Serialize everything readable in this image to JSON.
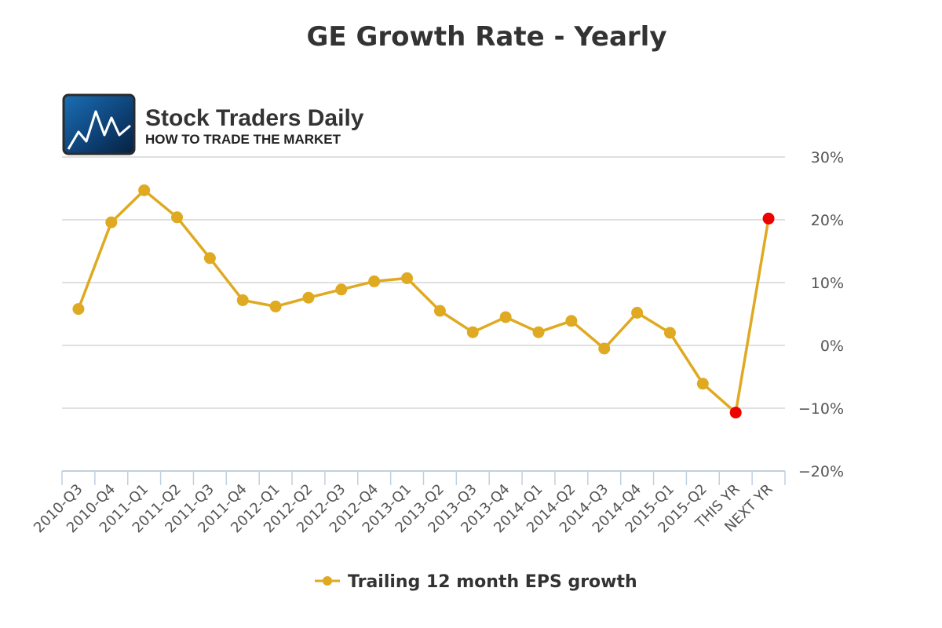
{
  "chart_data": {
    "type": "line",
    "title": "GE Growth Rate - Yearly",
    "categories": [
      "2010-Q3",
      "2010-Q4",
      "2011-Q1",
      "2011-Q2",
      "2011-Q3",
      "2011-Q4",
      "2012-Q1",
      "2012-Q2",
      "2012-Q3",
      "2012-Q4",
      "2013-Q1",
      "2013-Q2",
      "2013-Q3",
      "2013-Q4",
      "2014-Q1",
      "2014-Q2",
      "2014-Q3",
      "2014-Q4",
      "2015-Q1",
      "2015-Q2",
      "THIS YR",
      "NEXT YR"
    ],
    "series": [
      {
        "name": "Trailing 12 month EPS growth",
        "values": [
          5.8,
          19.6,
          24.7,
          20.4,
          13.9,
          7.2,
          6.2,
          7.6,
          8.9,
          10.2,
          10.7,
          5.5,
          2.1,
          4.5,
          2.1,
          3.9,
          -0.5,
          5.2,
          2.0,
          -6.1,
          -10.7,
          20.2
        ],
        "color": "#DFAA21",
        "highlight_color": "#EE0000",
        "highlight_categories": [
          "THIS YR",
          "NEXT YR"
        ]
      }
    ],
    "ylim": [
      -20,
      30
    ],
    "yticks": [
      30,
      20,
      10,
      0,
      -10,
      -20
    ],
    "ytick_labels": [
      "30%",
      "20%",
      "10%",
      "0%",
      "−10%",
      "−20%"
    ],
    "y_axis_side": "right",
    "grid": true,
    "legend": "bottom-center"
  },
  "logo": {
    "name": "Stock Traders Daily",
    "tagline": "HOW TO TRADE THE MARKET"
  },
  "colors": {
    "grid": "#D6D6D6",
    "axis": "#C0D0E0",
    "text": "#333333"
  }
}
